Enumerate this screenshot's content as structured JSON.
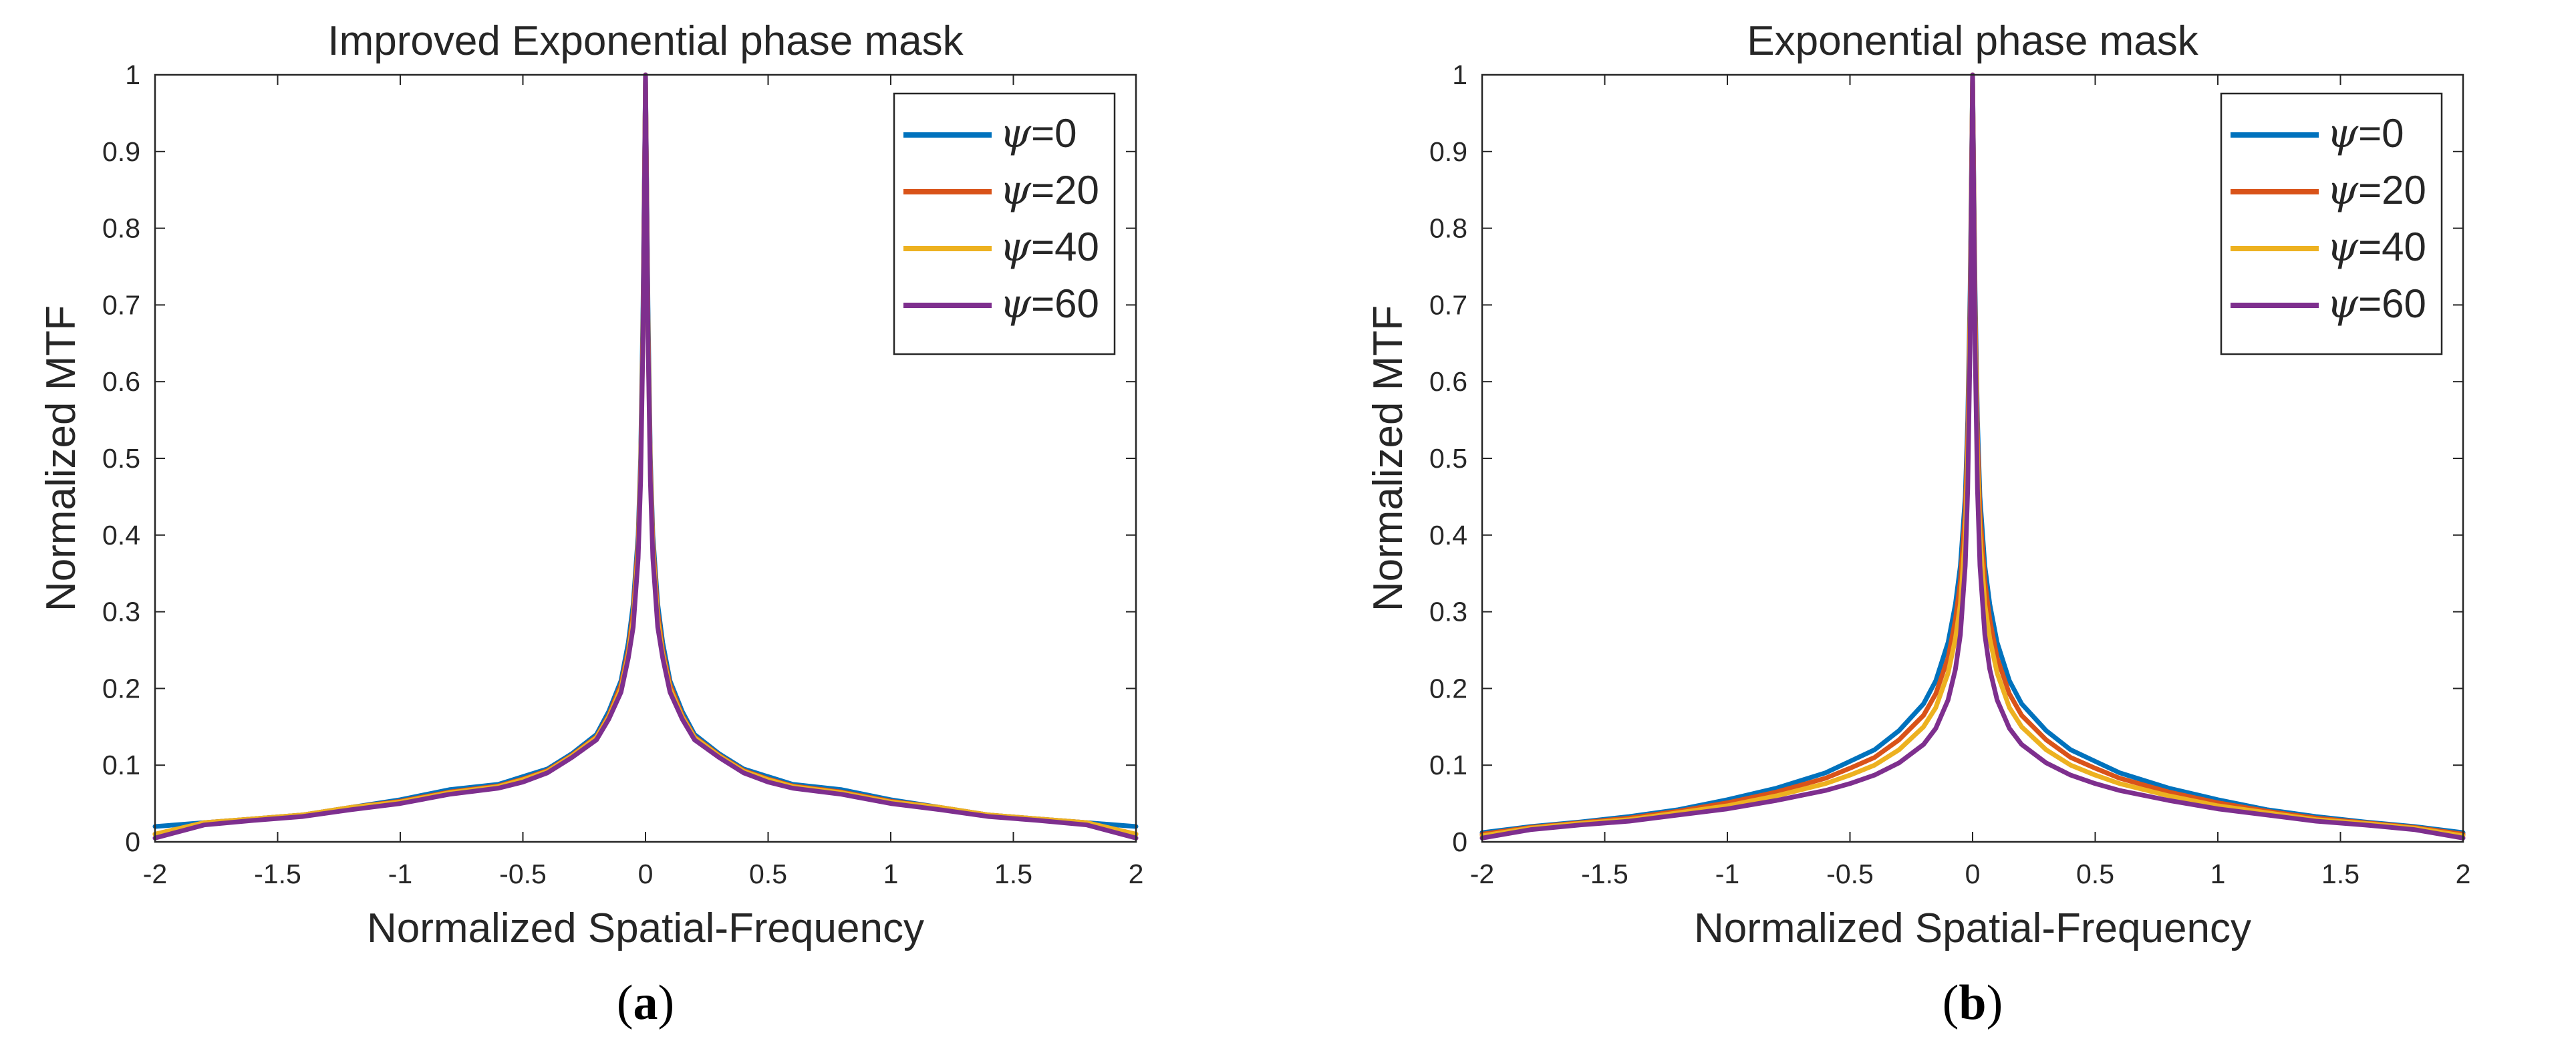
{
  "chart_data": [
    {
      "type": "line",
      "title": "Improved Exponential phase mask",
      "xlabel": "Normalized Spatial-Frequency",
      "ylabel": "Normalized MTF",
      "panel_label": "a",
      "xlim": [
        -2,
        2
      ],
      "ylim": [
        0,
        1
      ],
      "xticks": [
        "-2",
        "-1.5",
        "-1",
        "-0.5",
        "0",
        "0.5",
        "1",
        "1.5",
        "2"
      ],
      "yticks": [
        "0",
        "0.1",
        "0.2",
        "0.3",
        "0.4",
        "0.5",
        "0.6",
        "0.7",
        "0.8",
        "0.9",
        "1"
      ],
      "legend_location": "top-right",
      "x": [
        -2,
        -1.8,
        -1.6,
        -1.4,
        -1.2,
        -1.0,
        -0.8,
        -0.6,
        -0.5,
        -0.4,
        -0.3,
        -0.2,
        -0.15,
        -0.1,
        -0.07,
        -0.05,
        -0.03,
        -0.02,
        -0.01,
        0,
        0.01,
        0.02,
        0.03,
        0.05,
        0.07,
        0.1,
        0.15,
        0.2,
        0.3,
        0.4,
        0.5,
        0.6,
        0.8,
        1.0,
        1.2,
        1.4,
        1.6,
        1.8,
        2
      ],
      "series": [
        {
          "name": "ψ=0",
          "psi": "ψ",
          "label_value": "=0",
          "color": "#0072bd",
          "values": [
            0.02,
            0.025,
            0.03,
            0.035,
            0.045,
            0.055,
            0.068,
            0.075,
            0.085,
            0.095,
            0.115,
            0.14,
            0.17,
            0.21,
            0.26,
            0.31,
            0.4,
            0.5,
            0.7,
            1.0,
            0.7,
            0.5,
            0.4,
            0.31,
            0.26,
            0.21,
            0.17,
            0.14,
            0.115,
            0.095,
            0.085,
            0.075,
            0.068,
            0.055,
            0.045,
            0.035,
            0.03,
            0.025,
            0.02
          ]
        },
        {
          "name": "ψ=20",
          "psi": "ψ",
          "label_value": "=20",
          "color": "#d95319",
          "values": [
            0.01,
            0.025,
            0.03,
            0.035,
            0.045,
            0.053,
            0.065,
            0.073,
            0.082,
            0.093,
            0.113,
            0.137,
            0.165,
            0.205,
            0.25,
            0.3,
            0.39,
            0.49,
            0.68,
            1.0,
            0.68,
            0.49,
            0.39,
            0.3,
            0.25,
            0.205,
            0.165,
            0.137,
            0.113,
            0.093,
            0.082,
            0.073,
            0.065,
            0.053,
            0.045,
            0.035,
            0.03,
            0.025,
            0.01
          ]
        },
        {
          "name": "ψ=40",
          "psi": "ψ",
          "label_value": "=40",
          "color": "#edb120",
          "values": [
            0.01,
            0.025,
            0.03,
            0.035,
            0.045,
            0.052,
            0.064,
            0.072,
            0.081,
            0.092,
            0.112,
            0.136,
            0.163,
            0.2,
            0.245,
            0.29,
            0.38,
            0.48,
            0.67,
            1.0,
            0.67,
            0.48,
            0.38,
            0.29,
            0.245,
            0.2,
            0.163,
            0.136,
            0.112,
            0.092,
            0.081,
            0.072,
            0.064,
            0.052,
            0.045,
            0.035,
            0.03,
            0.025,
            0.01
          ]
        },
        {
          "name": "ψ=60",
          "psi": "ψ",
          "label_value": "=60",
          "color": "#7e2f8e",
          "values": [
            0.005,
            0.022,
            0.028,
            0.033,
            0.042,
            0.05,
            0.062,
            0.07,
            0.078,
            0.09,
            0.11,
            0.133,
            0.16,
            0.195,
            0.24,
            0.28,
            0.37,
            0.47,
            0.66,
            1.0,
            0.66,
            0.47,
            0.37,
            0.28,
            0.24,
            0.195,
            0.16,
            0.133,
            0.11,
            0.09,
            0.078,
            0.07,
            0.062,
            0.05,
            0.042,
            0.033,
            0.028,
            0.022,
            0.005
          ]
        }
      ]
    },
    {
      "type": "line",
      "title": "Exponential phase mask",
      "xlabel": "Normalized Spatial-Frequency",
      "ylabel": "Normalized MTF",
      "panel_label": "b",
      "xlim": [
        -2,
        2
      ],
      "ylim": [
        0,
        1
      ],
      "xticks": [
        "-2",
        "-1.5",
        "-1",
        "-0.5",
        "0",
        "0.5",
        "1",
        "1.5",
        "2"
      ],
      "yticks": [
        "0",
        "0.1",
        "0.2",
        "0.3",
        "0.4",
        "0.5",
        "0.6",
        "0.7",
        "0.8",
        "0.9",
        "1"
      ],
      "legend_location": "top-right",
      "x": [
        -2,
        -1.8,
        -1.6,
        -1.4,
        -1.2,
        -1.0,
        -0.8,
        -0.6,
        -0.5,
        -0.4,
        -0.3,
        -0.2,
        -0.15,
        -0.1,
        -0.07,
        -0.05,
        -0.03,
        -0.02,
        -0.01,
        0,
        0.01,
        0.02,
        0.03,
        0.05,
        0.07,
        0.1,
        0.15,
        0.2,
        0.3,
        0.4,
        0.5,
        0.6,
        0.8,
        1.0,
        1.2,
        1.4,
        1.6,
        1.8,
        2
      ],
      "series": [
        {
          "name": "ψ=0",
          "psi": "ψ",
          "label_value": "=0",
          "color": "#0072bd",
          "values": [
            0.012,
            0.02,
            0.026,
            0.033,
            0.042,
            0.055,
            0.07,
            0.09,
            0.105,
            0.12,
            0.145,
            0.18,
            0.21,
            0.26,
            0.31,
            0.36,
            0.45,
            0.55,
            0.72,
            1.0,
            0.72,
            0.55,
            0.45,
            0.36,
            0.31,
            0.26,
            0.21,
            0.18,
            0.145,
            0.12,
            0.105,
            0.09,
            0.07,
            0.055,
            0.042,
            0.033,
            0.026,
            0.02,
            0.012
          ]
        },
        {
          "name": "ψ=20",
          "psi": "ψ",
          "label_value": "=20",
          "color": "#d95319",
          "values": [
            0.01,
            0.019,
            0.025,
            0.031,
            0.04,
            0.051,
            0.065,
            0.083,
            0.096,
            0.11,
            0.133,
            0.165,
            0.193,
            0.24,
            0.29,
            0.34,
            0.43,
            0.53,
            0.7,
            1.0,
            0.7,
            0.53,
            0.43,
            0.34,
            0.29,
            0.24,
            0.193,
            0.165,
            0.133,
            0.11,
            0.096,
            0.083,
            0.065,
            0.051,
            0.04,
            0.031,
            0.025,
            0.019,
            0.01
          ]
        },
        {
          "name": "ψ=40",
          "psi": "ψ",
          "label_value": "=40",
          "color": "#edb120",
          "values": [
            0.008,
            0.018,
            0.024,
            0.029,
            0.038,
            0.047,
            0.06,
            0.076,
            0.087,
            0.1,
            0.12,
            0.15,
            0.175,
            0.22,
            0.265,
            0.31,
            0.4,
            0.5,
            0.68,
            1.0,
            0.68,
            0.5,
            0.4,
            0.31,
            0.265,
            0.22,
            0.175,
            0.15,
            0.12,
            0.1,
            0.087,
            0.076,
            0.06,
            0.047,
            0.038,
            0.029,
            0.024,
            0.018,
            0.008
          ]
        },
        {
          "name": "ψ=60",
          "psi": "ψ",
          "label_value": "=60",
          "color": "#7e2f8e",
          "values": [
            0.005,
            0.016,
            0.022,
            0.027,
            0.035,
            0.043,
            0.054,
            0.067,
            0.076,
            0.087,
            0.103,
            0.127,
            0.148,
            0.185,
            0.225,
            0.27,
            0.36,
            0.46,
            0.65,
            1.0,
            0.65,
            0.46,
            0.36,
            0.27,
            0.225,
            0.185,
            0.148,
            0.127,
            0.103,
            0.087,
            0.076,
            0.067,
            0.054,
            0.043,
            0.035,
            0.027,
            0.022,
            0.016,
            0.005
          ]
        }
      ]
    }
  ]
}
